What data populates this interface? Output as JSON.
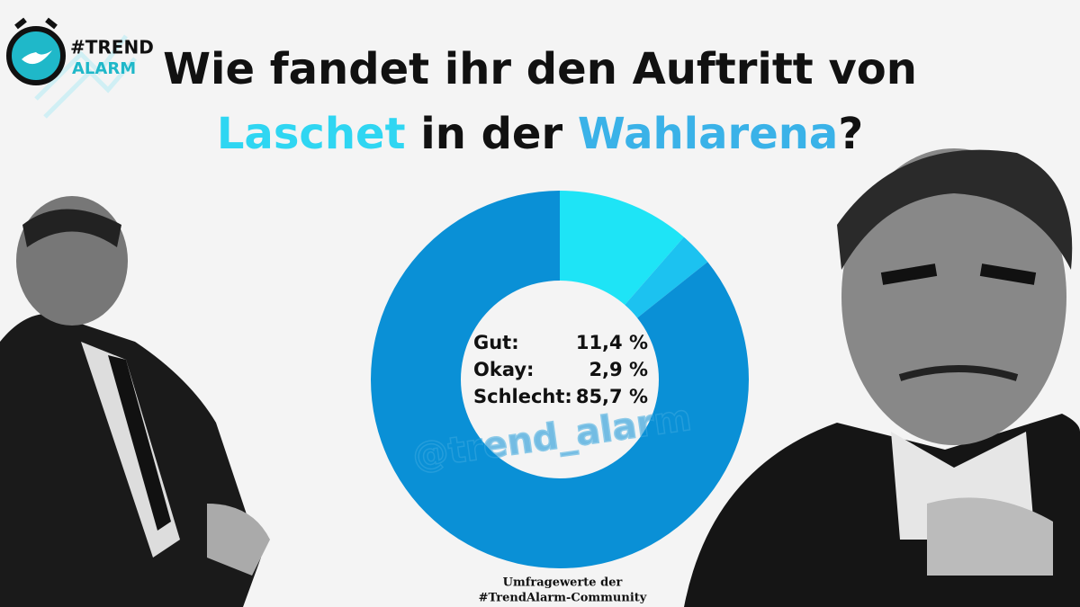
{
  "chart_data": {
    "type": "donut",
    "title_parts": [
      {
        "text": "Wie fandet ihr den Auftritt von",
        "color": "#111111"
      },
      {
        "text": "Laschet",
        "color": "#2fd6f2"
      },
      {
        "text": "in der",
        "color": "#111111"
      },
      {
        "text": "Wahlarena",
        "color": "#3ab2e8"
      },
      {
        "text": "?",
        "color": "#111111"
      }
    ],
    "categories": [
      "Gut:",
      "Okay:",
      "Schlecht:"
    ],
    "values": [
      11.4,
      2.9,
      85.7
    ],
    "value_labels": [
      "11,4 %",
      "2,9 %",
      "85,7 %"
    ],
    "colors": [
      "#1ee4f6",
      "#1cc2f0",
      "#0a90d6"
    ],
    "watermark": "@trend_alarm",
    "logo": [
      "#TREND",
      "ALARM"
    ],
    "footer": [
      "Umfragewerte der",
      "#TrendAlarm-Community"
    ]
  }
}
